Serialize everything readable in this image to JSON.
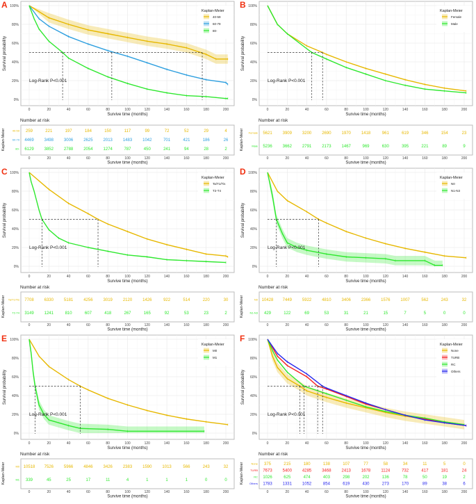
{
  "colors": {
    "orange": "#E7B800",
    "blue": "#2E9FDF",
    "green": "#2EE82E",
    "red": "#F52020",
    "navy": "#2626EE",
    "panel_letter": "#F03010"
  },
  "common": {
    "ylabel": "Survival probability",
    "xlabel": "Survive time (months)",
    "legend_title": "Kaplan-Meier",
    "risk_title": "Number at risk",
    "risk_ylabel": "Kaplan-Meier",
    "pvalue": "Log-Rank P<0.001",
    "xticks": [
      0,
      20,
      40,
      60,
      80,
      100,
      120,
      140,
      160,
      180,
      200
    ],
    "yticks": [
      0,
      20,
      40,
      60,
      80,
      100
    ],
    "ytick_labels": [
      "0%",
      "20%",
      "40%",
      "60%",
      "80%",
      "100%"
    ],
    "xlim": [
      0,
      205
    ],
    "ylim": [
      0,
      100
    ]
  },
  "chart_data": [
    {
      "type": "line",
      "panel": "A",
      "legend": "top-right",
      "grid": true,
      "medians": [
        34,
        84,
        176
      ],
      "series": [
        {
          "name": "40-59",
          "color": "#E7B800",
          "ci": true,
          "x": [
            0,
            20,
            40,
            60,
            80,
            100,
            120,
            140,
            160,
            180,
            190,
            202
          ],
          "y": [
            100,
            87,
            80,
            74,
            70,
            66,
            62,
            59,
            55,
            48,
            43,
            43
          ],
          "risk": [
            259,
            221,
            197,
            184,
            150,
            117,
            99,
            72,
            52,
            29,
            4
          ]
        },
        {
          "name": "60-79",
          "color": "#2E9FDF",
          "ci": false,
          "x": [
            0,
            10,
            20,
            40,
            60,
            80,
            100,
            120,
            140,
            160,
            180,
            200,
            202
          ],
          "y": [
            100,
            86,
            78,
            67,
            59,
            52,
            46,
            39,
            32,
            26,
            21,
            18,
            16
          ],
          "risk": [
            4469,
            3498,
            3006,
            2625,
            2013,
            1483,
            1042,
            701,
            421,
            186,
            26
          ]
        },
        {
          "name": "80-",
          "color": "#2EE82E",
          "ci": false,
          "x": [
            0,
            5,
            10,
            20,
            34,
            40,
            60,
            80,
            100,
            120,
            140,
            160,
            180,
            200,
            202
          ],
          "y": [
            100,
            86,
            75,
            62,
            50,
            44,
            33,
            24,
            17,
            11,
            7,
            4,
            3,
            1,
            1
          ],
          "risk": [
            6129,
            3852,
            2788,
            2054,
            1274,
            787,
            450,
            241,
            94,
            28,
            2
          ]
        }
      ]
    },
    {
      "type": "line",
      "panel": "B",
      "legend": "top-right",
      "grid": true,
      "medians": [
        45,
        56
      ],
      "series": [
        {
          "name": "Female",
          "color": "#E7B800",
          "ci": false,
          "x": [
            0,
            10,
            20,
            40,
            56,
            60,
            80,
            100,
            120,
            140,
            160,
            180,
            202
          ],
          "y": [
            100,
            80,
            70,
            57,
            50,
            48,
            40,
            33,
            27,
            21,
            16,
            12,
            9
          ],
          "risk": [
            5621,
            3909,
            3200,
            2690,
            1970,
            1418,
            961,
            619,
            346,
            154,
            23
          ]
        },
        {
          "name": "Male",
          "color": "#2EE82E",
          "ci": false,
          "x": [
            0,
            10,
            20,
            45,
            60,
            80,
            100,
            120,
            140,
            160,
            180,
            202
          ],
          "y": [
            100,
            80,
            70,
            50,
            43,
            34,
            27,
            20,
            15,
            11,
            9,
            7
          ],
          "risk": [
            5236,
            3662,
            2791,
            2173,
            1467,
            969,
            630,
            395,
            221,
            89,
            9
          ]
        }
      ]
    },
    {
      "type": "line",
      "panel": "C",
      "legend": "top-right",
      "grid": true,
      "medians": [
        13,
        70
      ],
      "series": [
        {
          "name": "Ta/T1/Tis",
          "color": "#E7B800",
          "ci": false,
          "x": [
            0,
            20,
            40,
            60,
            70,
            80,
            100,
            120,
            140,
            160,
            180,
            200,
            202
          ],
          "y": [
            100,
            82,
            67,
            56,
            50,
            45,
            37,
            29,
            23,
            18,
            13,
            11,
            10
          ],
          "risk": [
            7708,
            6330,
            5181,
            4256,
            3019,
            2120,
            1426,
            922,
            514,
            220,
            30
          ]
        },
        {
          "name": "T2-T4",
          "color": "#2EE82E",
          "ci": false,
          "x": [
            0,
            2,
            5,
            10,
            13,
            20,
            30,
            40,
            60,
            80,
            100,
            120,
            140,
            160,
            180,
            200
          ],
          "y": [
            100,
            90,
            80,
            60,
            50,
            39,
            30,
            25,
            20,
            16,
            12,
            10,
            7,
            6,
            5,
            4
          ],
          "risk": [
            3149,
            1241,
            810,
            607,
            418,
            267,
            165,
            92,
            53,
            23,
            2
          ]
        }
      ]
    },
    {
      "type": "line",
      "panel": "D",
      "legend": "top-right",
      "grid": true,
      "medians": [
        9,
        52
      ],
      "series": [
        {
          "name": "N0",
          "color": "#E7B800",
          "ci": false,
          "x": [
            0,
            10,
            20,
            40,
            52,
            60,
            80,
            100,
            120,
            140,
            160,
            180,
            202
          ],
          "y": [
            100,
            80,
            70,
            58,
            50,
            46,
            37,
            30,
            24,
            19,
            15,
            11,
            9
          ],
          "risk": [
            10428,
            7449,
            5922,
            4810,
            3406,
            2366,
            1576,
            1007,
            562,
            243,
            32
          ]
        },
        {
          "name": "N1-N3",
          "color": "#2EE82E",
          "ci": true,
          "x": [
            0,
            3,
            5,
            9,
            15,
            20,
            30,
            40,
            60,
            80,
            100,
            120,
            130,
            160,
            170,
            178
          ],
          "y": [
            100,
            85,
            75,
            50,
            35,
            25,
            20,
            17,
            13,
            10,
            9,
            8,
            6,
            6,
            1,
            1
          ],
          "risk": [
            429,
            122,
            69,
            53,
            31,
            21,
            15,
            7,
            5,
            0,
            0
          ]
        }
      ]
    },
    {
      "type": "line",
      "panel": "E",
      "legend": "top-right",
      "grid": true,
      "medians": [
        6,
        52
      ],
      "series": [
        {
          "name": "M0",
          "color": "#E7B800",
          "ci": false,
          "x": [
            0,
            10,
            20,
            40,
            52,
            60,
            80,
            100,
            120,
            140,
            160,
            180,
            202
          ],
          "y": [
            100,
            82,
            71,
            57,
            50,
            46,
            37,
            30,
            24,
            19,
            15,
            12,
            9
          ],
          "risk": [
            10518,
            7526,
            5966,
            4846,
            3426,
            2383,
            1590,
            1013,
            566,
            243,
            32
          ]
        },
        {
          "name": "M1",
          "color": "#2EE82E",
          "ci": true,
          "x": [
            0,
            2,
            4,
            6,
            10,
            15,
            20,
            40,
            52,
            80,
            100,
            178
          ],
          "y": [
            100,
            85,
            65,
            50,
            30,
            20,
            14,
            8,
            5,
            4,
            2,
            2
          ],
          "risk": [
            339,
            45,
            25,
            17,
            11,
            4,
            1,
            1,
            1,
            0,
            0
          ]
        }
      ]
    },
    {
      "type": "line",
      "panel": "F",
      "legend": "top-right",
      "grid": true,
      "medians": [
        33,
        37,
        51,
        56
      ],
      "series": [
        {
          "name": "None",
          "color": "#E7B800",
          "ci": true,
          "x": [
            0,
            5,
            10,
            20,
            33,
            40,
            60,
            80,
            100,
            120,
            140,
            160,
            180,
            200
          ],
          "y": [
            100,
            82,
            70,
            58,
            50,
            45,
            38,
            32,
            27,
            22,
            18,
            15,
            12,
            9
          ],
          "risk": [
            375,
            215,
            180,
            138,
            107,
            77,
            58,
            34,
            11,
            5,
            0
          ]
        },
        {
          "name": "TURB",
          "color": "#F52020",
          "ci": false,
          "x": [
            0,
            10,
            20,
            40,
            51,
            60,
            80,
            100,
            120,
            140,
            160,
            180,
            202
          ],
          "y": [
            100,
            82,
            72,
            60,
            50,
            47,
            39,
            31,
            25,
            19,
            15,
            11,
            8
          ],
          "risk": [
            7673,
            5400,
            4285,
            3468,
            2413,
            1678,
            1124,
            732,
            417,
            181,
            24
          ]
        },
        {
          "name": "RC",
          "color": "#2EE82E",
          "ci": false,
          "x": [
            0,
            5,
            10,
            20,
            37,
            60,
            80,
            100,
            120,
            140,
            160,
            180,
            200
          ],
          "y": [
            100,
            88,
            78,
            65,
            50,
            42,
            35,
            28,
            23,
            19,
            16,
            12,
            9
          ],
          "risk": [
            1026,
            625,
            474,
            403,
            298,
            202,
            136,
            78,
            50,
            19,
            2
          ]
        },
        {
          "name": "Others",
          "color": "#2626EE",
          "ci": false,
          "x": [
            0,
            10,
            20,
            40,
            56,
            60,
            80,
            100,
            120,
            140,
            160,
            180,
            202
          ],
          "y": [
            100,
            85,
            76,
            63,
            50,
            48,
            40,
            32,
            25,
            19,
            14,
            11,
            8
          ],
          "risk": [
            1783,
            1331,
            1052,
            854,
            619,
            430,
            273,
            170,
            89,
            38,
            6
          ]
        }
      ]
    }
  ]
}
